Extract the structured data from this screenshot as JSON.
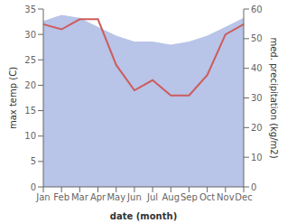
{
  "chart_data": {
    "type": "line",
    "xlabel": "date (month)",
    "ylabel": "max temp (C)",
    "y2label": "med. precipitation (kg/m2)",
    "categories": [
      "Jan",
      "Feb",
      "Mar",
      "Apr",
      "May",
      "Jun",
      "Jul",
      "Aug",
      "Sep",
      "Oct",
      "Nov",
      "Dec"
    ],
    "series": [
      {
        "type": "area",
        "axis": "y2",
        "color": "#b8c4e8",
        "values": [
          56,
          58,
          57,
          54,
          51,
          49,
          49,
          48,
          49,
          51,
          54,
          57
        ]
      },
      {
        "type": "line",
        "color": "#cd5c5c",
        "values": [
          32,
          31,
          33,
          33,
          24,
          19,
          21,
          18,
          18,
          22,
          30,
          32
        ]
      }
    ],
    "ylim": [
      0,
      35
    ],
    "yticks": [
      0,
      5,
      10,
      15,
      20,
      25,
      30,
      35
    ],
    "y2lim": [
      0,
      60
    ],
    "y2ticks": [
      0,
      10,
      20,
      30,
      40,
      50,
      60
    ],
    "grid": false
  }
}
